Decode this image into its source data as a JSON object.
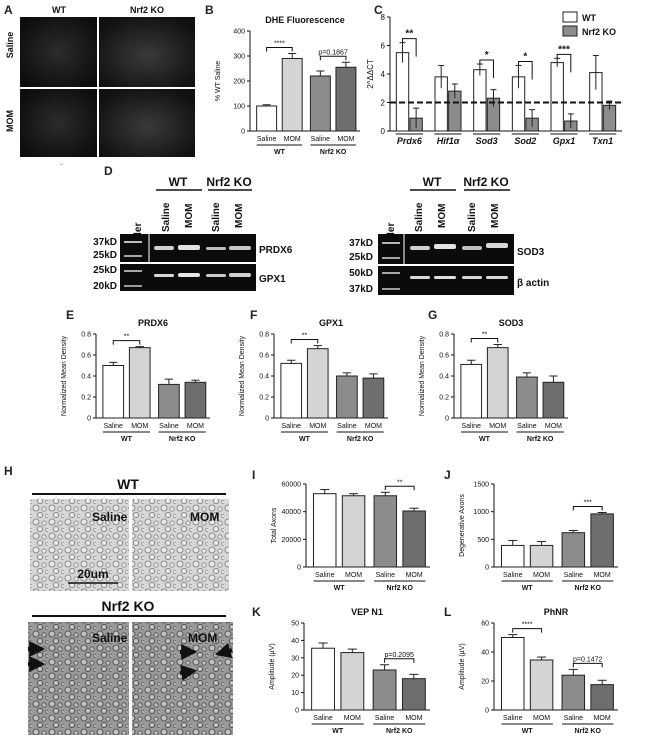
{
  "panels": {
    "a": {
      "letter": "A",
      "col_wt": "WT",
      "col_ko": "Nrf2 KO",
      "row_saline": "Saline",
      "row_mom": "MOM",
      "footer_mark": "."
    },
    "b": {
      "letter": "B"
    },
    "c": {
      "letter": "C"
    },
    "d": {
      "letter": "D",
      "ladder": "Ladder",
      "grp_wt": "WT",
      "grp_ko": "Nrf2 KO",
      "lanes": [
        "Saline",
        "MOM",
        "Saline",
        "MOM"
      ],
      "left_markers_top": [
        "37kD",
        "25kD"
      ],
      "left_markers_bottom": [
        "25kD",
        "20kD"
      ],
      "left_bands": [
        "PRDX6",
        "GPX1"
      ],
      "right_markers_top": [
        "37kD",
        "25kD"
      ],
      "right_markers_bottom": [
        "50kD",
        "37kD"
      ],
      "right_bands": [
        "SOD3",
        "β actin"
      ]
    },
    "e": {
      "letter": "E"
    },
    "f": {
      "letter": "F"
    },
    "g": {
      "letter": "G"
    },
    "h": {
      "letter": "H",
      "top_group": "WT",
      "bottom_group": "Nrf2 KO",
      "saline": "Saline",
      "mom": "MOM",
      "scale_label": "20um"
    },
    "i": {
      "letter": "I"
    },
    "j": {
      "letter": "J"
    },
    "k": {
      "letter": "K"
    },
    "l": {
      "letter": "L"
    }
  },
  "style": {
    "wt_saline": "#ffffff",
    "wt_mom": "#d4d4d4",
    "ko_saline": "#8c8c8c",
    "ko_mom": "#6e6e6e"
  },
  "chart_data": [
    {
      "id": "B",
      "type": "bar",
      "title": "DHE Fluorescence",
      "ylabel": "% WT Saline",
      "ylim": [
        0,
        400
      ],
      "yticks": [
        0,
        100,
        200,
        300,
        400
      ],
      "categories": [
        "Saline",
        "MOM",
        "Saline",
        "MOM"
      ],
      "groups": [
        "WT",
        "Nrf2 KO"
      ],
      "values": [
        100,
        290,
        220,
        255
      ],
      "errors": [
        5,
        20,
        20,
        20
      ],
      "annotations": [
        {
          "from": 0,
          "to": 1,
          "text": "****"
        },
        {
          "from": 2,
          "to": 3,
          "text": "p=0.1867"
        }
      ]
    },
    {
      "id": "C",
      "type": "bar",
      "ylabel": "2^ΔΔCT",
      "ylim": [
        0,
        8
      ],
      "yticks": [
        0,
        2,
        4,
        6,
        8
      ],
      "reference_line": 2,
      "categories": [
        "Prdx6",
        "Hif1α",
        "Sod3",
        "Sod2",
        "Gpx1",
        "Txn1"
      ],
      "series": [
        {
          "name": "WT",
          "values": [
            5.5,
            3.8,
            4.3,
            3.8,
            4.8,
            4.1
          ],
          "errors": [
            0.7,
            0.8,
            0.4,
            0.8,
            0.3,
            1.2
          ]
        },
        {
          "name": "Nrf2 KO",
          "values": [
            0.9,
            2.8,
            2.3,
            0.9,
            0.7,
            1.8
          ],
          "errors": [
            0.7,
            0.5,
            0.6,
            0.6,
            0.5,
            0.3
          ]
        }
      ],
      "legend": "top-right",
      "annotations": [
        {
          "category": 0,
          "text": "**"
        },
        {
          "category": 2,
          "text": "*"
        },
        {
          "category": 3,
          "text": "*"
        },
        {
          "category": 4,
          "text": "***"
        }
      ]
    },
    {
      "id": "E",
      "type": "bar",
      "title": "PRDX6",
      "ylabel": "Normalized Mean Density",
      "ylim": [
        0,
        0.8
      ],
      "yticks": [
        0,
        0.2,
        0.4,
        0.6,
        0.8
      ],
      "categories": [
        "Saline",
        "MOM",
        "Saline",
        "MOM"
      ],
      "groups": [
        "WT",
        "Nrf2 KO"
      ],
      "values": [
        0.5,
        0.67,
        0.32,
        0.34
      ],
      "errors": [
        0.03,
        0.01,
        0.05,
        0.02
      ],
      "annotations": [
        {
          "from": 0,
          "to": 1,
          "text": "**"
        }
      ]
    },
    {
      "id": "F",
      "type": "bar",
      "title": "GPX1",
      "ylabel": "Normalized Mean Density",
      "ylim": [
        0,
        0.8
      ],
      "yticks": [
        0,
        0.2,
        0.4,
        0.6,
        0.8
      ],
      "categories": [
        "Saline",
        "MOM",
        "Saline",
        "MOM"
      ],
      "groups": [
        "WT",
        "Nrf2 KO"
      ],
      "values": [
        0.52,
        0.66,
        0.4,
        0.38
      ],
      "errors": [
        0.03,
        0.03,
        0.03,
        0.04
      ],
      "annotations": [
        {
          "from": 0,
          "to": 1,
          "text": "**"
        }
      ]
    },
    {
      "id": "G",
      "type": "bar",
      "title": "SOD3",
      "ylabel": "Normalized Mean Density",
      "ylim": [
        0,
        0.8
      ],
      "yticks": [
        0,
        0.2,
        0.4,
        0.6,
        0.8
      ],
      "categories": [
        "Saline",
        "MOM",
        "Saline",
        "MOM"
      ],
      "groups": [
        "WT",
        "Nrf2 KO"
      ],
      "values": [
        0.51,
        0.67,
        0.39,
        0.34
      ],
      "errors": [
        0.04,
        0.03,
        0.04,
        0.06
      ],
      "annotations": [
        {
          "from": 0,
          "to": 1,
          "text": "**"
        }
      ]
    },
    {
      "id": "I",
      "type": "bar",
      "ylabel": "Total Axons",
      "ylim": [
        0,
        60000
      ],
      "yticks": [
        0,
        20000,
        40000,
        60000
      ],
      "categories": [
        "Saline",
        "MOM",
        "Saline",
        "MOM"
      ],
      "groups": [
        "WT",
        "Nrf2 KO"
      ],
      "values": [
        53000,
        51500,
        51500,
        40500
      ],
      "errors": [
        3000,
        1500,
        2500,
        2000
      ],
      "annotations": [
        {
          "from": 2,
          "to": 3,
          "text": "**"
        }
      ]
    },
    {
      "id": "J",
      "type": "bar",
      "ylabel": "Degenerative Axons",
      "ylim": [
        0,
        1500
      ],
      "yticks": [
        0,
        500,
        1000,
        1500
      ],
      "categories": [
        "Saline",
        "MOM",
        "Saline",
        "MOM"
      ],
      "groups": [
        "WT",
        "Nrf2 KO"
      ],
      "values": [
        390,
        390,
        620,
        960
      ],
      "errors": [
        90,
        70,
        40,
        25
      ],
      "annotations": [
        {
          "from": 2,
          "to": 3,
          "text": "***"
        }
      ]
    },
    {
      "id": "K",
      "type": "bar",
      "title": "VEP N1",
      "ylabel": "Amplitude (µV)",
      "ylim": [
        0,
        50
      ],
      "yticks": [
        0,
        10,
        20,
        30,
        40,
        50
      ],
      "categories": [
        "Saline",
        "MOM",
        "Saline",
        "MOM"
      ],
      "groups": [
        "WT",
        "Nrf2 KO"
      ],
      "values": [
        35.5,
        33,
        23,
        18
      ],
      "errors": [
        3,
        2,
        3,
        2.5
      ],
      "annotations": [
        {
          "from": 2,
          "to": 3,
          "text": "p=0.2095"
        }
      ]
    },
    {
      "id": "L",
      "type": "bar",
      "title": "PhNR",
      "ylabel": "Amplitude (µV)",
      "ylim": [
        0,
        60
      ],
      "yticks": [
        0,
        20,
        40,
        60
      ],
      "categories": [
        "Saline",
        "MOM",
        "Saline",
        "MOM"
      ],
      "groups": [
        "WT",
        "Nrf2 KO"
      ],
      "values": [
        50,
        34.5,
        24,
        17.5
      ],
      "errors": [
        2,
        2,
        4,
        3
      ],
      "annotations": [
        {
          "from": 0,
          "to": 1,
          "text": "****"
        },
        {
          "from": 2,
          "to": 3,
          "text": "p=0.1472"
        }
      ]
    }
  ]
}
